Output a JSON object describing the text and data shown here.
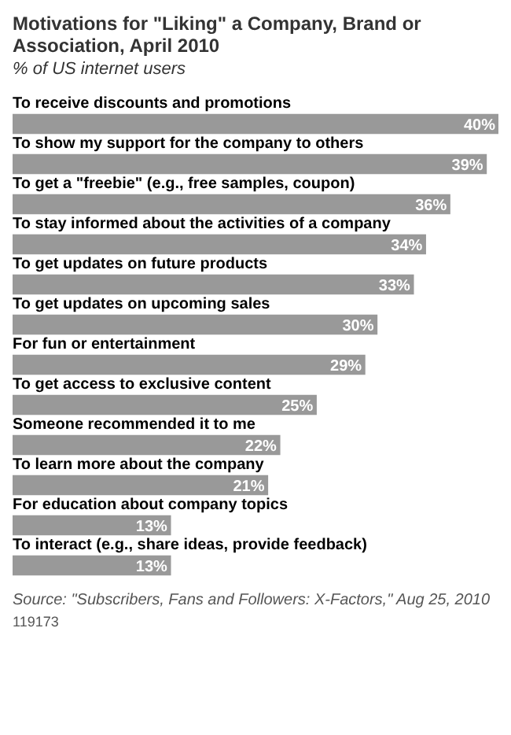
{
  "chart_data": {
    "type": "bar",
    "orientation": "horizontal",
    "title": "Motivations for \"Liking\" a Company, Brand or Association, April 2010",
    "subtitle": "% of US internet users",
    "categories": [
      "To receive discounts and promotions",
      "To show my support for the company to others",
      "To get a \"freebie\" (e.g., free samples, coupon)",
      "To stay informed about the activities of a company",
      "To get updates on future products",
      "To get updates on upcoming sales",
      "For fun or entertainment",
      "To get access to exclusive content",
      "Someone recommended it to me",
      "To learn more about the company",
      "For education about company topics",
      "To interact (e.g., share ideas, provide feedback)"
    ],
    "values": [
      40,
      39,
      36,
      34,
      33,
      30,
      29,
      25,
      22,
      21,
      13,
      13
    ],
    "value_labels": [
      "40%",
      "39%",
      "36%",
      "34%",
      "33%",
      "30%",
      "29%",
      "25%",
      "22%",
      "21%",
      "13%",
      "13%"
    ],
    "color": "#999999",
    "legend": false,
    "annotations": [
      "Source: \"Subscribers, Fans and Followers: X-Factors,\" Aug 25, 2010",
      "119173"
    ]
  }
}
